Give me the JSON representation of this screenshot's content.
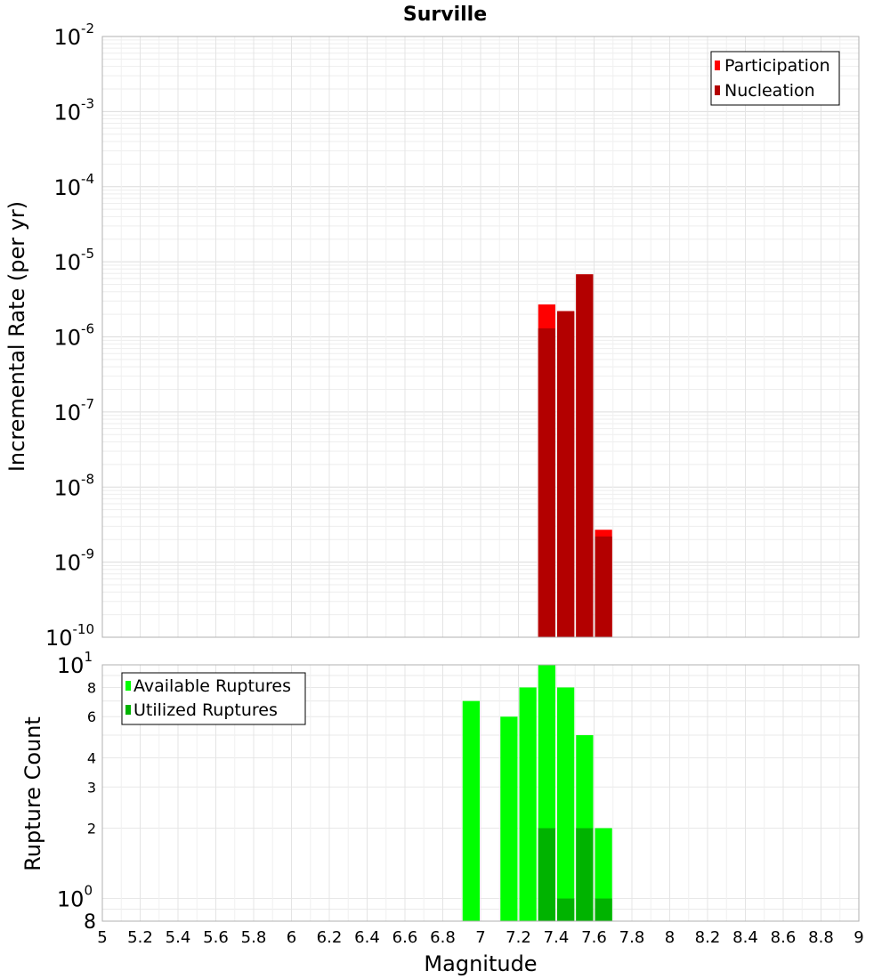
{
  "chart_data": [
    {
      "type": "bar",
      "panel": "top",
      "title": "Surville",
      "ylabel": "Incremental Rate (per yr)",
      "yscale": "log",
      "ylim": [
        1e-10,
        0.01
      ],
      "xlim": [
        5,
        9
      ],
      "grid": true,
      "legend_position": "top-right",
      "x": [
        7.35,
        7.45,
        7.55,
        7.65
      ],
      "series": [
        {
          "name": "Participation",
          "color": "#ff0000",
          "values": [
            2.7e-06,
            2.2e-06,
            6.8e-06,
            2.7e-09
          ]
        },
        {
          "name": "Nucleation",
          "color": "#b30000",
          "values": [
            1.3e-06,
            2.2e-06,
            6.8e-06,
            2.2e-09
          ]
        }
      ],
      "y_ticks": [
        {
          "base": "10",
          "exp": "-2"
        },
        {
          "base": "10",
          "exp": "-3"
        },
        {
          "base": "10",
          "exp": "-4"
        },
        {
          "base": "10",
          "exp": "-5"
        },
        {
          "base": "10",
          "exp": "-6"
        },
        {
          "base": "10",
          "exp": "-7"
        },
        {
          "base": "10",
          "exp": "-8"
        },
        {
          "base": "10",
          "exp": "-9"
        },
        {
          "base": "10",
          "exp": "-10"
        }
      ]
    },
    {
      "type": "bar",
      "panel": "bottom",
      "ylabel": "Rupture Count",
      "xlabel": "Magnitude",
      "yscale": "log",
      "ylim": [
        0.8,
        10
      ],
      "xlim": [
        5,
        9
      ],
      "grid": true,
      "legend_position": "top-left",
      "x": [
        6.95,
        7.15,
        7.25,
        7.35,
        7.45,
        7.55,
        7.65
      ],
      "series": [
        {
          "name": "Available Ruptures",
          "color": "#00ff00",
          "values": [
            7,
            6,
            8,
            10,
            8,
            5,
            2
          ]
        },
        {
          "name": "Utilized Ruptures",
          "color": "#00b300",
          "values": [
            0,
            0,
            0,
            2,
            1,
            2,
            1
          ]
        }
      ],
      "y_ticks_major": [
        {
          "base": "10",
          "exp": "1",
          "value": 10
        },
        {
          "base": "10",
          "exp": "0",
          "value": 1
        }
      ],
      "y_ticks_minor": [
        {
          "label": "8",
          "value": 8
        },
        {
          "label": "6",
          "value": 6
        },
        {
          "label": "4",
          "value": 4
        },
        {
          "label": "3",
          "value": 3
        },
        {
          "label": "2",
          "value": 2
        }
      ],
      "y_bottom_label": "8",
      "x_ticks": [
        "5",
        "5.2",
        "5.4",
        "5.6",
        "5.8",
        "6",
        "6.2",
        "6.4",
        "6.6",
        "6.8",
        "7",
        "7.2",
        "7.4",
        "7.6",
        "7.8",
        "8",
        "8.2",
        "8.4",
        "8.6",
        "8.8",
        "9"
      ]
    }
  ]
}
